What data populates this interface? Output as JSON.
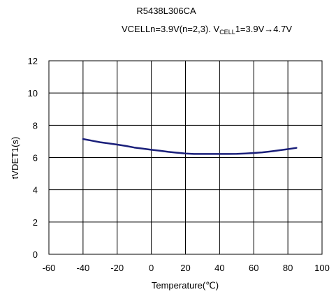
{
  "chart_data": {
    "type": "line",
    "title": "R5438L306CA",
    "subtitle": {
      "part1": "VCELLn=3.9V(n=2,3). V",
      "sub": "CELL",
      "part2": "1=3.9V→4.7V"
    },
    "xlabel": "Temperature(℃)",
    "ylabel": "tVDET1(s)",
    "xlim": [
      -60,
      100
    ],
    "ylim": [
      0,
      12
    ],
    "xticks": [
      -60,
      -40,
      -20,
      0,
      20,
      40,
      60,
      80,
      100
    ],
    "yticks": [
      0,
      2,
      4,
      6,
      8,
      10,
      12
    ],
    "grid": true,
    "series_color": "#1a1f7a",
    "series": [
      {
        "x": [
          -40,
          -35,
          -30,
          -25,
          -20,
          -15,
          -10,
          -5,
          0,
          5,
          10,
          15,
          20,
          25,
          30,
          35,
          40,
          45,
          50,
          55,
          60,
          65,
          70,
          75,
          80,
          85
        ],
        "values": [
          7.15,
          7.05,
          6.95,
          6.88,
          6.8,
          6.72,
          6.62,
          6.55,
          6.48,
          6.42,
          6.35,
          6.3,
          6.25,
          6.22,
          6.22,
          6.22,
          6.22,
          6.22,
          6.23,
          6.25,
          6.28,
          6.32,
          6.38,
          6.45,
          6.52,
          6.6
        ]
      }
    ]
  }
}
